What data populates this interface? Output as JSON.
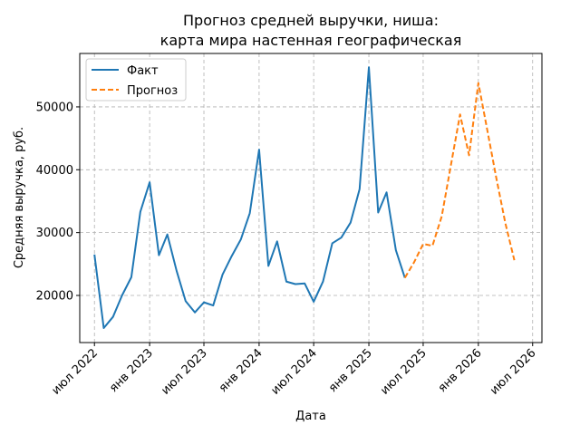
{
  "chart_data": {
    "type": "line",
    "title_line1": "Прогноз средней выручки, ниша:",
    "title_line2": "карта мира настенная географическая",
    "xlabel": "Дата",
    "ylabel": "Средняя выручка, руб.",
    "ylim": [
      12500,
      58500
    ],
    "y_ticks": [
      20000,
      30000,
      40000,
      50000
    ],
    "x_ticks": [
      {
        "date": "2022-07-01",
        "label": "июл 2022"
      },
      {
        "date": "2023-01-01",
        "label": "янв 2023"
      },
      {
        "date": "2023-07-01",
        "label": "июл 2023"
      },
      {
        "date": "2024-01-01",
        "label": "янв 2024"
      },
      {
        "date": "2024-07-01",
        "label": "июл 2024"
      },
      {
        "date": "2025-01-01",
        "label": "янв 2025"
      },
      {
        "date": "2025-07-01",
        "label": "июл 2025"
      },
      {
        "date": "2026-01-01",
        "label": "янв 2026"
      },
      {
        "date": "2026-07-01",
        "label": "июл 2026"
      }
    ],
    "xlim": [
      "2022-05-13",
      "2026-08-01"
    ],
    "grid": true,
    "legend_position": "top-left",
    "series": [
      {
        "name": "Факт",
        "color": "#1f77b4",
        "style": "solid",
        "points": [
          [
            "2022-07-01",
            26500
          ],
          [
            "2022-08-01",
            14800
          ],
          [
            "2022-09-01",
            16600
          ],
          [
            "2022-10-01",
            20000
          ],
          [
            "2022-11-01",
            22900
          ],
          [
            "2022-12-01",
            33300
          ],
          [
            "2023-01-01",
            38000
          ],
          [
            "2023-02-01",
            26400
          ],
          [
            "2023-03-01",
            29700
          ],
          [
            "2023-04-01",
            23900
          ],
          [
            "2023-05-01",
            19100
          ],
          [
            "2023-06-01",
            17300
          ],
          [
            "2023-07-01",
            18900
          ],
          [
            "2023-08-01",
            18400
          ],
          [
            "2023-09-01",
            23300
          ],
          [
            "2023-10-01",
            26200
          ],
          [
            "2023-11-01",
            28900
          ],
          [
            "2023-12-01",
            33100
          ],
          [
            "2024-01-01",
            43200
          ],
          [
            "2024-02-01",
            24700
          ],
          [
            "2024-03-01",
            28600
          ],
          [
            "2024-04-01",
            22200
          ],
          [
            "2024-05-01",
            21800
          ],
          [
            "2024-06-01",
            21900
          ],
          [
            "2024-07-01",
            19000
          ],
          [
            "2024-08-01",
            22200
          ],
          [
            "2024-09-01",
            28300
          ],
          [
            "2024-10-01",
            29200
          ],
          [
            "2024-11-01",
            31600
          ],
          [
            "2024-12-01",
            36900
          ],
          [
            "2025-01-01",
            56300
          ],
          [
            "2025-02-01",
            33200
          ],
          [
            "2025-03-01",
            36400
          ],
          [
            "2025-04-01",
            27200
          ],
          [
            "2025-05-01",
            22800
          ]
        ]
      },
      {
        "name": "Прогноз",
        "color": "#ff7f0e",
        "style": "dashed",
        "points": [
          [
            "2025-05-01",
            22800
          ],
          [
            "2025-06-01",
            25300
          ],
          [
            "2025-07-01",
            28200
          ],
          [
            "2025-08-01",
            27900
          ],
          [
            "2025-09-01",
            32600
          ],
          [
            "2025-10-01",
            40600
          ],
          [
            "2025-11-01",
            48800
          ],
          [
            "2025-12-01",
            42300
          ],
          [
            "2026-01-01",
            53800
          ],
          [
            "2026-02-01",
            46000
          ],
          [
            "2026-03-01",
            38900
          ],
          [
            "2026-04-01",
            31500
          ],
          [
            "2026-05-01",
            25600
          ]
        ]
      }
    ]
  }
}
